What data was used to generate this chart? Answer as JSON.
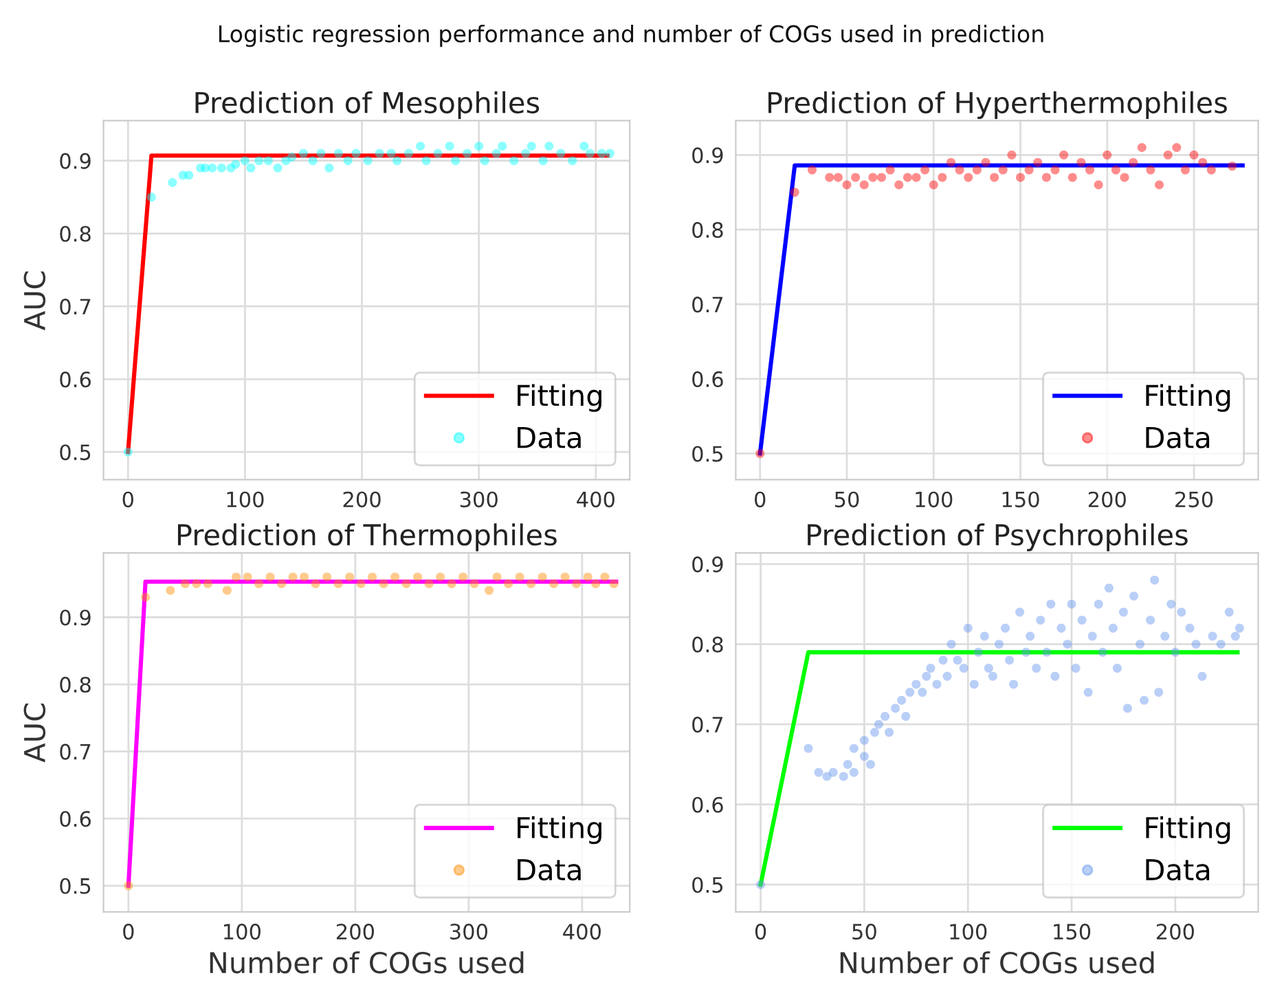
{
  "chart_data": [
    {
      "type": "scatter",
      "title": "Prediction of Mesophiles",
      "ylabel": "AUC",
      "annotations": [
        "Logistic regression performance and number of COGs used in prediction"
      ],
      "xlim": [
        -21,
        429
      ],
      "ylim": [
        0.462,
        0.955
      ],
      "xticks": [
        0,
        100,
        200,
        300,
        400
      ],
      "yticks": [
        0.5,
        0.6,
        0.7,
        0.8,
        0.9
      ],
      "grid": true,
      "legend": "lower right",
      "series": [
        {
          "name": "Fitting",
          "type": "line",
          "marker": "none",
          "color": "#ff0000",
          "x": [
            0,
            20,
            410
          ],
          "values": [
            0.5,
            0.907,
            0.907
          ]
        },
        {
          "name": "Data",
          "marker": "circle",
          "color": "#00ffff",
          "x": [
            0,
            20,
            38,
            47,
            52,
            62,
            66,
            72,
            80,
            88,
            92,
            100,
            105,
            112,
            120,
            128,
            135,
            140,
            150,
            158,
            165,
            172,
            180,
            188,
            195,
            205,
            215,
            225,
            230,
            240,
            250,
            255,
            265,
            275,
            280,
            290,
            300,
            305,
            315,
            320,
            330,
            340,
            345,
            355,
            360,
            370,
            380,
            390,
            395,
            405,
            412
          ],
          "values": [
            0.5,
            0.85,
            0.87,
            0.88,
            0.88,
            0.89,
            0.89,
            0.89,
            0.89,
            0.89,
            0.895,
            0.9,
            0.89,
            0.9,
            0.9,
            0.89,
            0.9,
            0.905,
            0.91,
            0.9,
            0.91,
            0.89,
            0.91,
            0.9,
            0.91,
            0.9,
            0.91,
            0.91,
            0.9,
            0.91,
            0.92,
            0.9,
            0.91,
            0.92,
            0.9,
            0.91,
            0.92,
            0.9,
            0.91,
            0.92,
            0.9,
            0.91,
            0.92,
            0.9,
            0.92,
            0.91,
            0.9,
            0.92,
            0.91,
            0.91,
            0.91
          ]
        }
      ]
    },
    {
      "type": "scatter",
      "title": "Prediction of Hyperthermophiles",
      "xlim": [
        -14,
        287
      ],
      "ylim": [
        0.465,
        0.946
      ],
      "xticks": [
        0,
        50,
        100,
        150,
        200,
        250
      ],
      "yticks": [
        0.5,
        0.6,
        0.7,
        0.8,
        0.9
      ],
      "grid": true,
      "legend": "lower right",
      "series": [
        {
          "name": "Fitting",
          "type": "line",
          "marker": "none",
          "color": "#0000ff",
          "x": [
            0,
            20,
            278
          ],
          "values": [
            0.5,
            0.886,
            0.886
          ]
        },
        {
          "name": "Data",
          "marker": "circle",
          "color": "#ff0000",
          "x": [
            0,
            20,
            30,
            40,
            45,
            50,
            55,
            60,
            65,
            70,
            75,
            80,
            85,
            90,
            95,
            100,
            105,
            110,
            115,
            120,
            125,
            130,
            135,
            140,
            145,
            150,
            155,
            160,
            165,
            170,
            175,
            180,
            185,
            190,
            195,
            200,
            205,
            210,
            215,
            220,
            225,
            230,
            235,
            240,
            245,
            250,
            255,
            260,
            272
          ],
          "values": [
            0.5,
            0.85,
            0.88,
            0.87,
            0.87,
            0.86,
            0.87,
            0.86,
            0.87,
            0.87,
            0.88,
            0.86,
            0.87,
            0.87,
            0.88,
            0.86,
            0.87,
            0.89,
            0.88,
            0.87,
            0.88,
            0.89,
            0.87,
            0.88,
            0.9,
            0.87,
            0.88,
            0.89,
            0.87,
            0.88,
            0.9,
            0.87,
            0.89,
            0.88,
            0.86,
            0.9,
            0.88,
            0.87,
            0.89,
            0.91,
            0.88,
            0.86,
            0.9,
            0.91,
            0.88,
            0.9,
            0.89,
            0.88,
            0.885
          ]
        }
      ]
    },
    {
      "type": "scatter",
      "title": "Prediction of Thermophiles",
      "xlabel": "Number of COGs used",
      "ylabel": "AUC",
      "xlim": [
        -22,
        442
      ],
      "ylim": [
        0.461,
        0.996
      ],
      "xticks": [
        0,
        100,
        200,
        300,
        400
      ],
      "yticks": [
        0.5,
        0.6,
        0.7,
        0.8,
        0.9
      ],
      "grid": true,
      "legend": "lower right",
      "series": [
        {
          "name": "Fitting",
          "type": "line",
          "marker": "none",
          "color": "#ff00ff",
          "x": [
            0,
            15,
            430
          ],
          "values": [
            0.5,
            0.953,
            0.953
          ]
        },
        {
          "name": "Data",
          "marker": "circle",
          "color": "#ff8c00",
          "x": [
            0,
            15,
            37,
            50,
            60,
            70,
            87,
            95,
            105,
            115,
            125,
            135,
            145,
            155,
            165,
            175,
            185,
            195,
            205,
            215,
            225,
            235,
            245,
            255,
            265,
            275,
            285,
            295,
            305,
            318,
            325,
            335,
            345,
            355,
            365,
            375,
            385,
            395,
            405,
            412,
            420,
            428
          ],
          "values": [
            0.5,
            0.93,
            0.94,
            0.95,
            0.95,
            0.95,
            0.94,
            0.96,
            0.96,
            0.95,
            0.96,
            0.95,
            0.96,
            0.96,
            0.95,
            0.96,
            0.95,
            0.96,
            0.95,
            0.96,
            0.95,
            0.96,
            0.95,
            0.96,
            0.95,
            0.96,
            0.95,
            0.96,
            0.95,
            0.94,
            0.96,
            0.95,
            0.96,
            0.95,
            0.96,
            0.95,
            0.96,
            0.95,
            0.96,
            0.95,
            0.96,
            0.95
          ]
        }
      ]
    },
    {
      "type": "scatter",
      "title": "Prediction of Psychrophiles",
      "xlabel": "Number of COGs used",
      "xlim": [
        -12,
        240
      ],
      "ylim": [
        0.466,
        0.914
      ],
      "xticks": [
        0,
        50,
        100,
        150,
        200
      ],
      "yticks": [
        0.5,
        0.6,
        0.7,
        0.8,
        0.9
      ],
      "grid": true,
      "legend": "lower right",
      "series": [
        {
          "name": "Fitting",
          "type": "line",
          "marker": "none",
          "color": "#00ff00",
          "x": [
            0,
            23,
            230
          ],
          "values": [
            0.5,
            0.79,
            0.79
          ]
        },
        {
          "name": "Data",
          "marker": "circle",
          "color": "#6495ed",
          "x": [
            0,
            23,
            28,
            32,
            35,
            40,
            42,
            45,
            45,
            50,
            50,
            53,
            55,
            57,
            60,
            62,
            65,
            68,
            70,
            72,
            75,
            78,
            80,
            82,
            85,
            88,
            90,
            92,
            95,
            98,
            100,
            103,
            105,
            108,
            110,
            112,
            115,
            118,
            120,
            122,
            125,
            128,
            130,
            133,
            135,
            138,
            140,
            142,
            145,
            148,
            150,
            152,
            155,
            158,
            160,
            163,
            165,
            168,
            170,
            172,
            175,
            177,
            180,
            183,
            185,
            188,
            190,
            192,
            195,
            198,
            200,
            203,
            207,
            210,
            213,
            218,
            222,
            226,
            229,
            231
          ],
          "values": [
            0.5,
            0.67,
            0.64,
            0.635,
            0.64,
            0.635,
            0.65,
            0.64,
            0.67,
            0.66,
            0.68,
            0.65,
            0.69,
            0.7,
            0.71,
            0.69,
            0.72,
            0.73,
            0.71,
            0.74,
            0.75,
            0.74,
            0.76,
            0.77,
            0.75,
            0.78,
            0.76,
            0.8,
            0.78,
            0.77,
            0.82,
            0.75,
            0.79,
            0.81,
            0.77,
            0.76,
            0.8,
            0.82,
            0.78,
            0.75,
            0.84,
            0.79,
            0.81,
            0.77,
            0.83,
            0.79,
            0.85,
            0.76,
            0.82,
            0.8,
            0.85,
            0.77,
            0.83,
            0.74,
            0.81,
            0.85,
            0.79,
            0.87,
            0.82,
            0.77,
            0.84,
            0.72,
            0.86,
            0.8,
            0.73,
            0.83,
            0.88,
            0.74,
            0.81,
            0.85,
            0.79,
            0.84,
            0.82,
            0.8,
            0.76,
            0.81,
            0.8,
            0.84,
            0.81,
            0.82
          ]
        }
      ]
    }
  ]
}
